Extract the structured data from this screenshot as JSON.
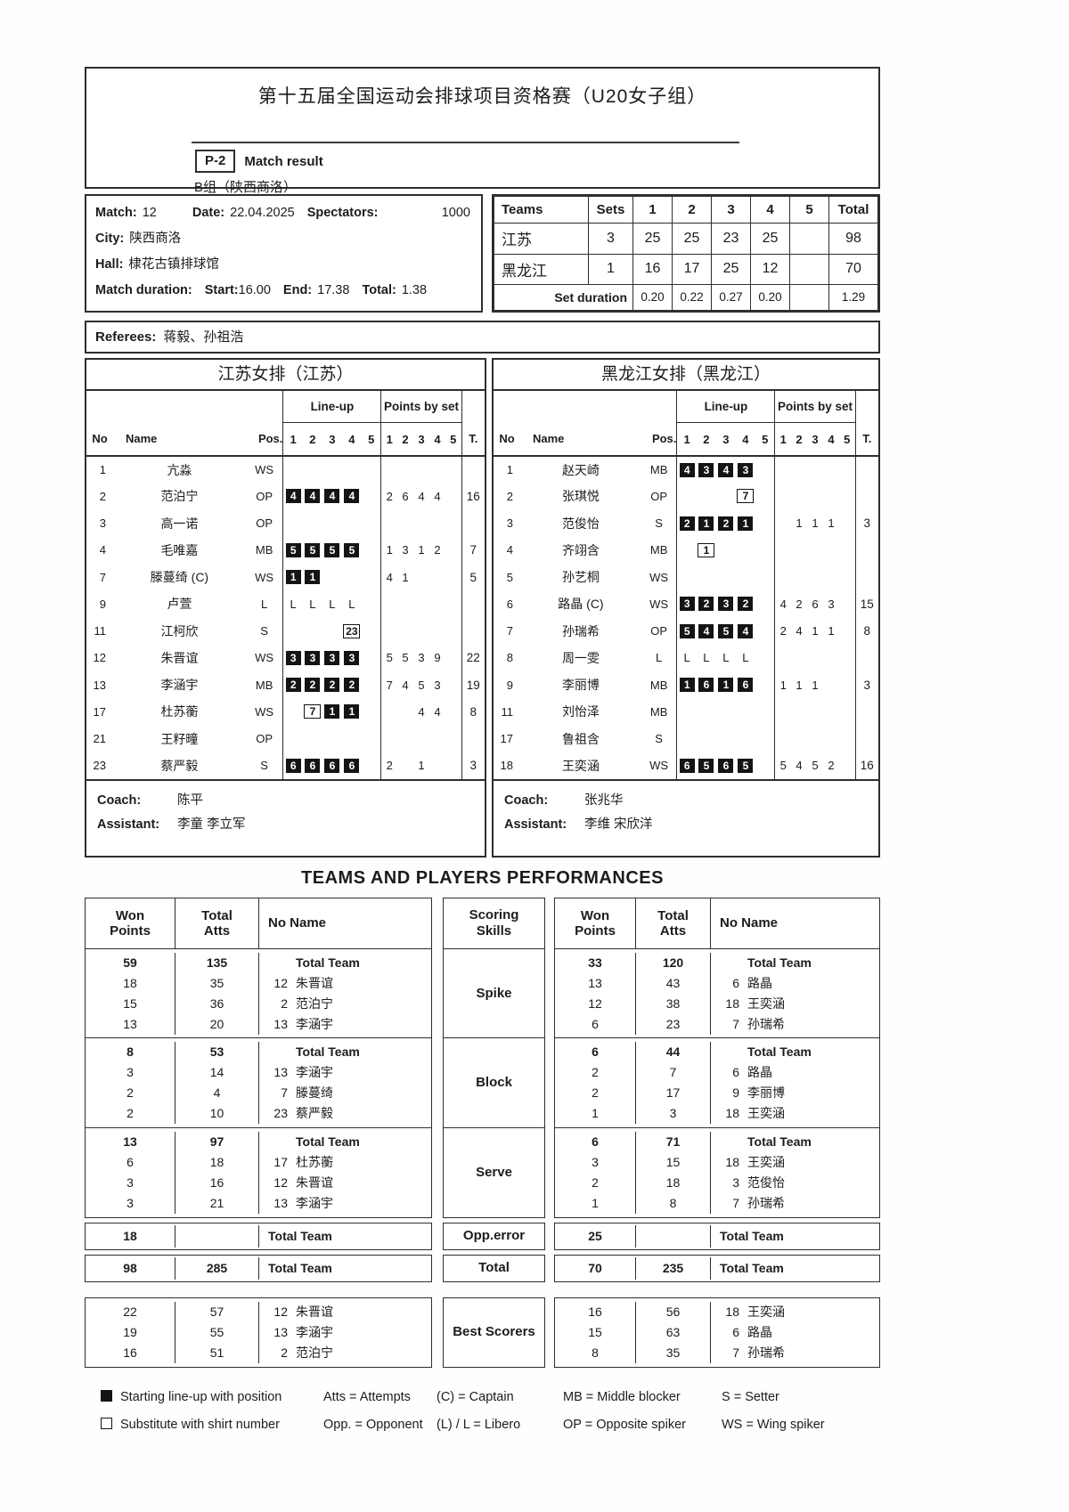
{
  "header": {
    "title": "第十五届全国运动会排球项目资格赛（U20女子组）",
    "code": "P-2",
    "code_label": "Match result",
    "group": "B组（陕西商洛）"
  },
  "match_info": {
    "match_label": "Match:",
    "match_value": "12",
    "date_label": "Date:",
    "date_value": "22.04.2025",
    "spectators_label": "Spectators:",
    "spectators_value": "1000",
    "city_label": "City:",
    "city_value": "陕西商洛",
    "hall_label": "Hall:",
    "hall_value": "棣花古镇排球馆",
    "duration_label": "Match duration:",
    "start_label": "Start:",
    "start_value": "16.00",
    "end_label": "End:",
    "end_value": "17.38",
    "total_label": "Total:",
    "total_value": "1.38"
  },
  "result_table": {
    "headers": [
      "Teams",
      "Sets",
      "1",
      "2",
      "3",
      "4",
      "5",
      "Total"
    ],
    "rows": [
      {
        "team": "江苏",
        "sets": "3",
        "p": [
          "25",
          "25",
          "23",
          "25",
          ""
        ],
        "total": "98"
      },
      {
        "team": "黑龙江",
        "sets": "1",
        "p": [
          "16",
          "17",
          "25",
          "12",
          ""
        ],
        "total": "70"
      }
    ],
    "duration_label": "Set duration",
    "durations": [
      "0.20",
      "0.22",
      "0.27",
      "0.20",
      ""
    ],
    "duration_total": "1.29"
  },
  "referees": {
    "label": "Referees:",
    "names": "蒋毅、孙祖浩"
  },
  "teams": [
    {
      "title": "江苏女排（江苏）",
      "group_lineup": "Line-up",
      "group_points": "Points by set",
      "col_no": "No",
      "col_name": "Name",
      "col_pos": "Pos.",
      "col_t": "T.",
      "set_nums": [
        "1",
        "2",
        "3",
        "4",
        "5"
      ],
      "players": [
        {
          "no": "1",
          "name": "亢淼",
          "pos": "WS",
          "lu": [
            "",
            "",
            "",
            "",
            ""
          ],
          "pts": [
            "",
            "",
            "",
            "",
            ""
          ],
          "t": ""
        },
        {
          "no": "2",
          "name": "范泊宁",
          "pos": "OP",
          "lu": [
            "b4",
            "b4",
            "b4",
            "b4",
            ""
          ],
          "pts": [
            "2",
            "6",
            "4",
            "4",
            ""
          ],
          "t": "16"
        },
        {
          "no": "3",
          "name": "高一诺",
          "pos": "OP",
          "lu": [
            "",
            "",
            "",
            "",
            ""
          ],
          "pts": [
            "",
            "",
            "",
            "",
            ""
          ],
          "t": ""
        },
        {
          "no": "4",
          "name": "毛唯嘉",
          "pos": "MB",
          "lu": [
            "b5",
            "b5",
            "b5",
            "b5",
            ""
          ],
          "pts": [
            "1",
            "3",
            "1",
            "2",
            ""
          ],
          "t": "7"
        },
        {
          "no": "7",
          "name": "滕蔓绮 (C)",
          "pos": "WS",
          "lu": [
            "b1",
            "b1",
            "",
            "",
            ""
          ],
          "pts": [
            "4",
            "1",
            "",
            "",
            ""
          ],
          "t": "5"
        },
        {
          "no": "9",
          "name": "卢萱",
          "pos": "L",
          "lu": [
            "L",
            "L",
            "L",
            "L",
            ""
          ],
          "pts": [
            "",
            "",
            "",
            "",
            ""
          ],
          "t": ""
        },
        {
          "no": "11",
          "name": "江柯欣",
          "pos": "S",
          "lu": [
            "",
            "",
            "",
            "w23",
            ""
          ],
          "pts": [
            "",
            "",
            "",
            "",
            ""
          ],
          "t": ""
        },
        {
          "no": "12",
          "name": "朱晋谊",
          "pos": "WS",
          "lu": [
            "b3",
            "b3",
            "b3",
            "b3",
            ""
          ],
          "pts": [
            "5",
            "5",
            "3",
            "9",
            ""
          ],
          "t": "22"
        },
        {
          "no": "13",
          "name": "李涵宇",
          "pos": "MB",
          "lu": [
            "b2",
            "b2",
            "b2",
            "b2",
            ""
          ],
          "pts": [
            "7",
            "4",
            "5",
            "3",
            ""
          ],
          "t": "19"
        },
        {
          "no": "17",
          "name": "杜苏蘅",
          "pos": "WS",
          "lu": [
            "",
            "w7",
            "b1",
            "b1",
            ""
          ],
          "pts": [
            "",
            "",
            "4",
            "4",
            ""
          ],
          "t": "8"
        },
        {
          "no": "21",
          "name": "王籽疃",
          "pos": "OP",
          "lu": [
            "",
            "",
            "",
            "",
            ""
          ],
          "pts": [
            "",
            "",
            "",
            "",
            ""
          ],
          "t": ""
        },
        {
          "no": "23",
          "name": "蔡严毅",
          "pos": "S",
          "lu": [
            "b6",
            "b6",
            "b6",
            "b6",
            ""
          ],
          "pts": [
            "2",
            "",
            "1",
            "",
            ""
          ],
          "t": "3"
        }
      ],
      "coach_label": "Coach:",
      "coach": "陈平",
      "assistant_label": "Assistant:",
      "assistant": "李童 李立军"
    },
    {
      "title": "黑龙江女排（黑龙江）",
      "group_lineup": "Line-up",
      "group_points": "Points by set",
      "col_no": "No",
      "col_name": "Name",
      "col_pos": "Pos.",
      "col_t": "T.",
      "set_nums": [
        "1",
        "2",
        "3",
        "4",
        "5"
      ],
      "players": [
        {
          "no": "1",
          "name": "赵天崎",
          "pos": "MB",
          "lu": [
            "b4",
            "b3",
            "b4",
            "b3",
            ""
          ],
          "pts": [
            "",
            "",
            "",
            "",
            ""
          ],
          "t": ""
        },
        {
          "no": "2",
          "name": "张琪悦",
          "pos": "OP",
          "lu": [
            "",
            "",
            "",
            "w7",
            ""
          ],
          "pts": [
            "",
            "",
            "",
            "",
            ""
          ],
          "t": ""
        },
        {
          "no": "3",
          "name": "范俊怡",
          "pos": "S",
          "lu": [
            "b2",
            "b1",
            "b2",
            "b1",
            ""
          ],
          "pts": [
            "",
            "1",
            "1",
            "1",
            ""
          ],
          "t": "3"
        },
        {
          "no": "4",
          "name": "齐翊含",
          "pos": "MB",
          "lu": [
            "",
            "w1",
            "",
            "",
            ""
          ],
          "pts": [
            "",
            "",
            "",
            "",
            ""
          ],
          "t": ""
        },
        {
          "no": "5",
          "name": "孙艺桐",
          "pos": "WS",
          "lu": [
            "",
            "",
            "",
            "",
            ""
          ],
          "pts": [
            "",
            "",
            "",
            "",
            ""
          ],
          "t": ""
        },
        {
          "no": "6",
          "name": "路晶 (C)",
          "pos": "WS",
          "lu": [
            "b3",
            "b2",
            "b3",
            "b2",
            ""
          ],
          "pts": [
            "4",
            "2",
            "6",
            "3",
            ""
          ],
          "t": "15"
        },
        {
          "no": "7",
          "name": "孙瑞希",
          "pos": "OP",
          "lu": [
            "b5",
            "b4",
            "b5",
            "b4",
            ""
          ],
          "pts": [
            "2",
            "4",
            "1",
            "1",
            ""
          ],
          "t": "8"
        },
        {
          "no": "8",
          "name": "周一雯",
          "pos": "L",
          "lu": [
            "L",
            "L",
            "L",
            "L",
            ""
          ],
          "pts": [
            "",
            "",
            "",
            "",
            ""
          ],
          "t": ""
        },
        {
          "no": "9",
          "name": "李丽博",
          "pos": "MB",
          "lu": [
            "b1",
            "b6",
            "b1",
            "b6",
            ""
          ],
          "pts": [
            "1",
            "1",
            "1",
            "",
            ""
          ],
          "t": "3"
        },
        {
          "no": "11",
          "name": "刘怡泽",
          "pos": "MB",
          "lu": [
            "",
            "",
            "",
            "",
            ""
          ],
          "pts": [
            "",
            "",
            "",
            "",
            ""
          ],
          "t": ""
        },
        {
          "no": "17",
          "name": "鲁祖含",
          "pos": "S",
          "lu": [
            "",
            "",
            "",
            "",
            ""
          ],
          "pts": [
            "",
            "",
            "",
            "",
            ""
          ],
          "t": ""
        },
        {
          "no": "18",
          "name": "王奕涵",
          "pos": "WS",
          "lu": [
            "b6",
            "b5",
            "b6",
            "b5",
            ""
          ],
          "pts": [
            "5",
            "4",
            "5",
            "2",
            ""
          ],
          "t": "16"
        }
      ],
      "coach_label": "Coach:",
      "coach": "张兆华",
      "assistant_label": "Assistant:",
      "assistant": "李维 宋欣洋"
    }
  ],
  "performances": {
    "title": "TEAMS AND PLAYERS PERFORMANCES",
    "hdr": {
      "won1": "Won",
      "won2": "Points",
      "atts1": "Total",
      "atts2": "Atts",
      "name": "No Name",
      "skill1": "Scoring",
      "skill2": "Skills"
    },
    "sections": [
      {
        "skill": "Spike",
        "left": [
          {
            "w": "59",
            "a": "135",
            "no": "",
            "nm": "Total Team",
            "bold": true
          },
          {
            "w": "18",
            "a": "35",
            "no": "12",
            "nm": "朱晋谊"
          },
          {
            "w": "15",
            "a": "36",
            "no": "2",
            "nm": "范泊宁"
          },
          {
            "w": "13",
            "a": "20",
            "no": "13",
            "nm": "李涵宇"
          }
        ],
        "right": [
          {
            "w": "33",
            "a": "120",
            "no": "",
            "nm": "Total Team",
            "bold": true
          },
          {
            "w": "13",
            "a": "43",
            "no": "6",
            "nm": "路晶"
          },
          {
            "w": "12",
            "a": "38",
            "no": "18",
            "nm": "王奕涵"
          },
          {
            "w": "6",
            "a": "23",
            "no": "7",
            "nm": "孙瑞希"
          }
        ]
      },
      {
        "skill": "Block",
        "left": [
          {
            "w": "8",
            "a": "53",
            "no": "",
            "nm": "Total Team",
            "bold": true
          },
          {
            "w": "3",
            "a": "14",
            "no": "13",
            "nm": "李涵宇"
          },
          {
            "w": "2",
            "a": "4",
            "no": "7",
            "nm": "滕蔓绮"
          },
          {
            "w": "2",
            "a": "10",
            "no": "23",
            "nm": "蔡严毅"
          }
        ],
        "right": [
          {
            "w": "6",
            "a": "44",
            "no": "",
            "nm": "Total Team",
            "bold": true
          },
          {
            "w": "2",
            "a": "7",
            "no": "6",
            "nm": "路晶"
          },
          {
            "w": "2",
            "a": "17",
            "no": "9",
            "nm": "李丽博"
          },
          {
            "w": "1",
            "a": "3",
            "no": "18",
            "nm": "王奕涵"
          }
        ]
      },
      {
        "skill": "Serve",
        "left": [
          {
            "w": "13",
            "a": "97",
            "no": "",
            "nm": "Total Team",
            "bold": true
          },
          {
            "w": "6",
            "a": "18",
            "no": "17",
            "nm": "杜苏蘅"
          },
          {
            "w": "3",
            "a": "16",
            "no": "12",
            "nm": "朱晋谊"
          },
          {
            "w": "3",
            "a": "21",
            "no": "13",
            "nm": "李涵宇"
          }
        ],
        "right": [
          {
            "w": "6",
            "a": "71",
            "no": "",
            "nm": "Total Team",
            "bold": true
          },
          {
            "w": "3",
            "a": "15",
            "no": "18",
            "nm": "王奕涵"
          },
          {
            "w": "2",
            "a": "18",
            "no": "3",
            "nm": "范俊怡"
          },
          {
            "w": "1",
            "a": "8",
            "no": "7",
            "nm": "孙瑞希"
          }
        ]
      }
    ],
    "opp": {
      "skill": "Opp.error",
      "left": {
        "w": "18",
        "a": "",
        "nm": "Total Team"
      },
      "right": {
        "w": "25",
        "a": "",
        "nm": "Total Team"
      }
    },
    "total": {
      "skill": "Total",
      "left": {
        "w": "98",
        "a": "285",
        "nm": "Total Team"
      },
      "right": {
        "w": "70",
        "a": "235",
        "nm": "Total Team"
      }
    },
    "best": {
      "skill": "Best Scorers",
      "left": [
        {
          "w": "22",
          "a": "57",
          "no": "12",
          "nm": "朱晋谊"
        },
        {
          "w": "19",
          "a": "55",
          "no": "13",
          "nm": "李涵宇"
        },
        {
          "w": "16",
          "a": "51",
          "no": "2",
          "nm": "范泊宁"
        }
      ],
      "right": [
        {
          "w": "16",
          "a": "56",
          "no": "18",
          "nm": "王奕涵"
        },
        {
          "w": "15",
          "a": "63",
          "no": "6",
          "nm": "路晶"
        },
        {
          "w": "8",
          "a": "35",
          "no": "7",
          "nm": "孙瑞希"
        }
      ]
    }
  },
  "legend": {
    "rows": [
      [
        {
          "sym": "filled",
          "text": "Starting line-up with position"
        },
        {
          "text": "Atts = Attempts"
        },
        {
          "text": "(C) = Captain"
        },
        {
          "text": "MB = Middle blocker"
        },
        {
          "text": "S = Setter"
        }
      ],
      [
        {
          "sym": "empty",
          "text": "Substitute with shirt number"
        },
        {
          "text": "Opp. = Opponent"
        },
        {
          "text": "(L) / L = Libero"
        },
        {
          "text": "OP = Opposite spiker"
        },
        {
          "text": "WS = Wing spiker"
        }
      ]
    ]
  }
}
